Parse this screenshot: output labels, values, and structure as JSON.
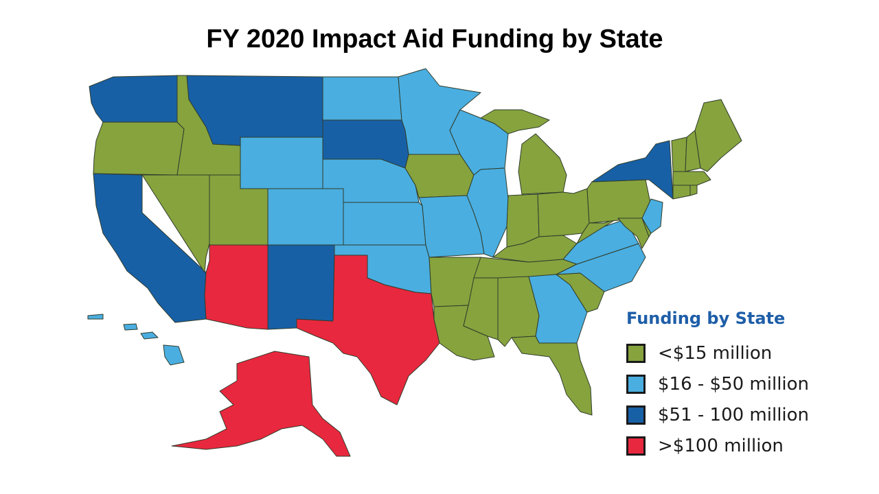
{
  "title": "FY 2020 Impact Aid Funding by State",
  "colors": {
    "tier1": "#86a33e",
    "tier2": "#4aaee0",
    "tier3": "#1860a6",
    "tier4": "#e8283e"
  },
  "legend": {
    "title": "Funding by State",
    "items": [
      {
        "label": "<$15 million",
        "tier": "tier1"
      },
      {
        "label": "$16 - $50 million",
        "tier": "tier2"
      },
      {
        "label": "$51 - 100 million",
        "tier": "tier3"
      },
      {
        "label": ">$100 million",
        "tier": "tier4"
      }
    ]
  },
  "states": {
    "WA": "tier3",
    "OR": "tier1",
    "CA": "tier3",
    "NV": "tier1",
    "ID": "tier1",
    "MT": "tier3",
    "WY": "tier2",
    "UT": "tier1",
    "AZ": "tier4",
    "CO": "tier2",
    "NM": "tier3",
    "ND": "tier2",
    "SD": "tier3",
    "NE": "tier2",
    "KS": "tier2",
    "OK": "tier2",
    "TX": "tier4",
    "MN": "tier2",
    "IA": "tier1",
    "MO": "tier2",
    "AR": "tier1",
    "LA": "tier1",
    "WI": "tier2",
    "IL": "tier2",
    "MI": "tier1",
    "IN": "tier1",
    "OH": "tier1",
    "KY": "tier1",
    "TN": "tier1",
    "MS": "tier1",
    "AL": "tier1",
    "GA": "tier2",
    "FL": "tier1",
    "SC": "tier1",
    "NC": "tier2",
    "VA": "tier2",
    "WV": "tier1",
    "PA": "tier1",
    "NY": "tier3",
    "NJ": "tier2",
    "MD": "tier1",
    "DE": "tier1",
    "CT": "tier1",
    "RI": "tier1",
    "MA": "tier1",
    "VT": "tier1",
    "NH": "tier1",
    "ME": "tier1",
    "AK": "tier4",
    "HI": "tier2"
  }
}
